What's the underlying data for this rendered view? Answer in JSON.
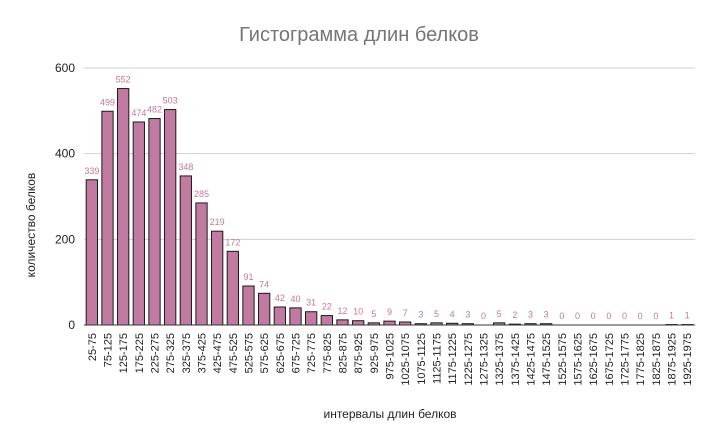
{
  "chart_data": {
    "type": "bar",
    "title": "Гистограмма длин белков",
    "xlabel": "интервалы длин белков",
    "ylabel": "количество белков",
    "ylim": [
      0,
      600
    ],
    "yticks": [
      "0",
      "200",
      "400",
      "600"
    ],
    "grid": true,
    "bar_color": "#c27ba0",
    "label_color": "#c0789a",
    "categories": [
      "25-75",
      "75-125",
      "125-175",
      "175-225",
      "225-275",
      "275-325",
      "325-375",
      "375-425",
      "425-475",
      "475-525",
      "525-575",
      "575-625",
      "625-675",
      "675-725",
      "725-775",
      "775-825",
      "825-875",
      "875-925",
      "925-975",
      "975-1025",
      "1025-1075",
      "1075-1125",
      "1125-1175",
      "1175-1225",
      "1225-1275",
      "1275-1325",
      "1325-1375",
      "1375-1425",
      "1425-1475",
      "1475-1525",
      "1525-1575",
      "1575-1625",
      "1625-1675",
      "1675-1725",
      "1725-1775",
      "1775-1825",
      "1825-1875",
      "1875-1925",
      "1925-1975"
    ],
    "values": [
      339,
      499,
      552,
      474,
      482,
      503,
      348,
      285,
      219,
      172,
      91,
      74,
      42,
      40,
      31,
      22,
      12,
      10,
      5,
      9,
      7,
      3,
      5,
      4,
      3,
      0,
      5,
      2,
      3,
      3,
      0,
      0,
      0,
      0,
      0,
      0,
      0,
      1,
      1
    ]
  }
}
